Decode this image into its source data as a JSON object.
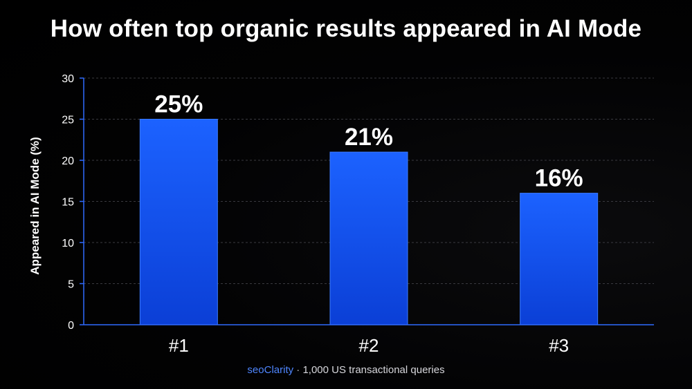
{
  "chart_data": {
    "type": "bar",
    "title": "How often top organic results appeared in AI Mode",
    "ylabel": "Appeared in AI Mode (%)",
    "xlabel": "",
    "categories": [
      "#1",
      "#2",
      "#3"
    ],
    "values": [
      25,
      21,
      16
    ],
    "data_labels": [
      "25%",
      "21%",
      "16%"
    ],
    "ylim": [
      0,
      30
    ],
    "yticks": [
      0,
      5,
      10,
      15,
      20,
      25,
      30
    ],
    "ytick_labels": [
      "0",
      "5",
      "10",
      "15",
      "20",
      "25",
      "30"
    ],
    "grid": true,
    "legend": "none"
  },
  "footer": {
    "brand": "seoClarity",
    "separator": "·",
    "text": "1,000 US transactional queries"
  },
  "colors": {
    "background": "#000000",
    "bar_top": "#1c62ff",
    "bar_bottom": "#0b3fd6",
    "axis": "#2f6bff",
    "brand": "#4f86ff",
    "text": "#ffffff"
  }
}
